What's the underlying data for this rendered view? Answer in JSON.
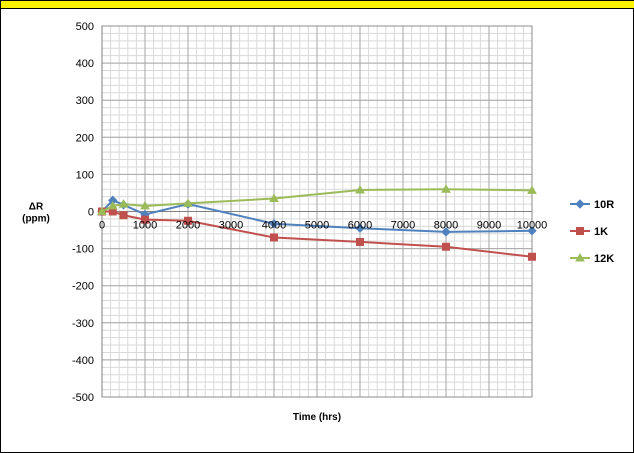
{
  "header": {
    "title": ""
  },
  "chart_data": {
    "type": "line",
    "title": "",
    "xlabel": "Time (hrs)",
    "ylabel": "ΔR\n(ppm)",
    "ylabel_line1": "ΔR",
    "ylabel_line2": "(ppm)",
    "xlim": [
      0,
      10000
    ],
    "ylim": [
      -500,
      500
    ],
    "x_ticks": [
      0,
      1000,
      2000,
      3000,
      4000,
      5000,
      6000,
      7000,
      8000,
      9000,
      10000
    ],
    "y_ticks": [
      500,
      400,
      300,
      200,
      100,
      0,
      -100,
      -200,
      -300,
      -400,
      -500
    ],
    "grid": true,
    "legend_position": "right",
    "series": [
      {
        "name": "10R",
        "color": "#4F81BD",
        "marker": "diamond",
        "x": [
          0,
          250,
          500,
          1000,
          2000,
          4000,
          6000,
          8000,
          10000
        ],
        "y": [
          0,
          30,
          18,
          -8,
          20,
          -33,
          -45,
          -55,
          -52
        ]
      },
      {
        "name": "1K",
        "color": "#C0504D",
        "marker": "square",
        "x": [
          0,
          250,
          500,
          1000,
          2000,
          4000,
          6000,
          8000,
          10000
        ],
        "y": [
          0,
          0,
          -10,
          -22,
          -25,
          -70,
          -82,
          -95,
          -122
        ]
      },
      {
        "name": "12K",
        "color": "#9BBB59",
        "marker": "triangle",
        "x": [
          0,
          250,
          500,
          1000,
          2000,
          4000,
          6000,
          8000,
          10000
        ],
        "y": [
          0,
          15,
          20,
          15,
          22,
          35,
          58,
          60,
          57
        ]
      }
    ]
  }
}
